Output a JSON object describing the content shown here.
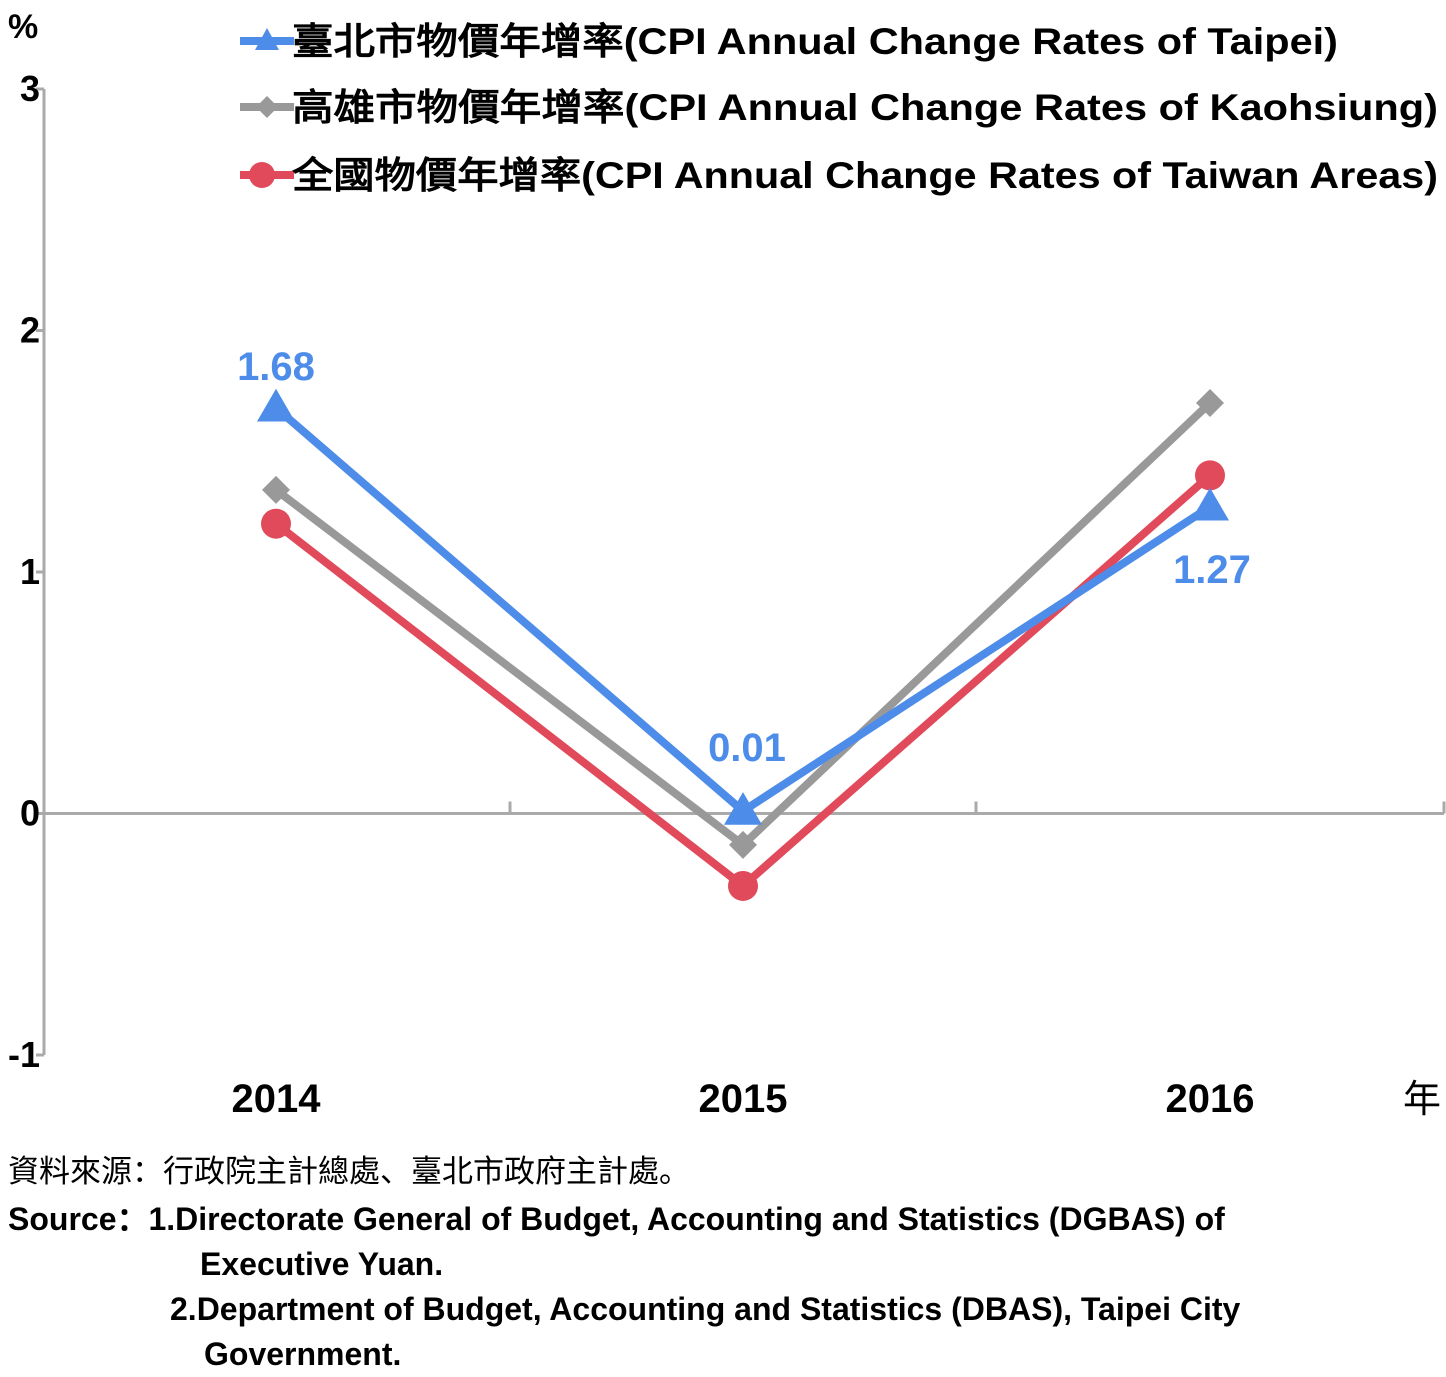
{
  "chart_data": {
    "type": "line",
    "y_unit": "%",
    "x_unit": "年",
    "categories": [
      "2014",
      "2015",
      "2016"
    ],
    "ylim": [
      -1,
      3
    ],
    "yticks": [
      -1,
      0,
      1,
      2,
      3
    ],
    "legend_position": "top",
    "series": [
      {
        "name": "臺北市物價年增率(CPI Annual Change Rates of Taipei)",
        "values": [
          1.68,
          0.01,
          1.27
        ],
        "labels": [
          "1.68",
          "0.01",
          "1.27"
        ],
        "color": "#4d8ce8",
        "marker": "triangle"
      },
      {
        "name": "高雄市物價年增率(CPI Annual Change Rates of Kaohsiung)",
        "values": [
          1.34,
          -0.13,
          1.7
        ],
        "color": "#999999",
        "marker": "diamond"
      },
      {
        "name": "全國物價年增率(CPI Annual Change Rates of Taiwan Areas)",
        "values": [
          1.2,
          -0.3,
          1.4
        ],
        "color": "#e04a5a",
        "marker": "circle"
      }
    ]
  },
  "source": {
    "zh": "資料來源：行政院主計總處、臺北市政府主計處。",
    "en_line1": "Source：1.Directorate General of Budget, Accounting and Statistics (DGBAS) of",
    "en_line2": "Executive Yuan.",
    "en_line3": "2.Department of Budget, Accounting and Statistics (DBAS), Taipei City",
    "en_line4": "Government."
  }
}
